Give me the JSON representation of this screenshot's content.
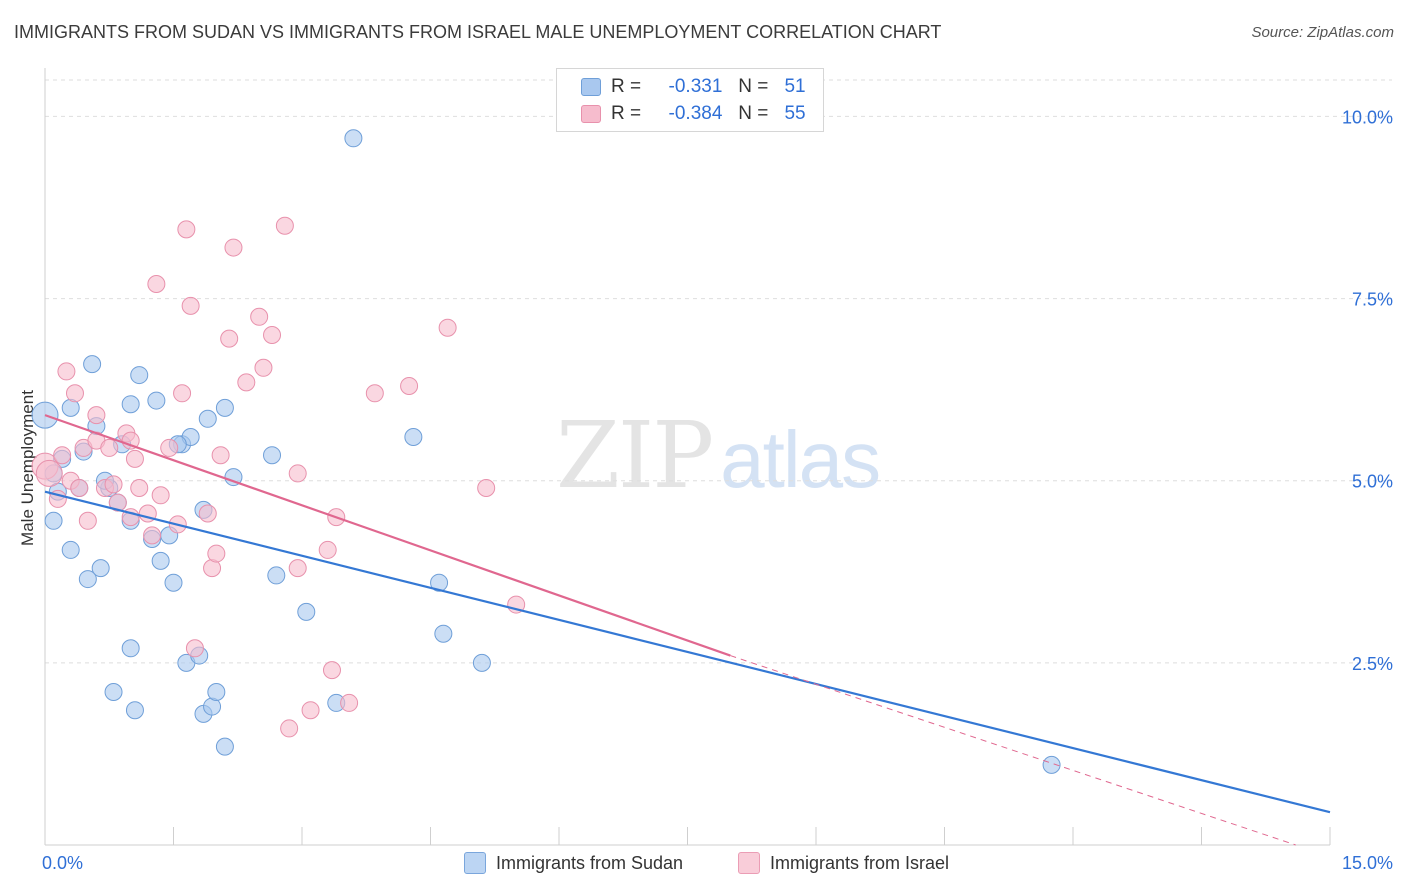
{
  "title": "IMMIGRANTS FROM SUDAN VS IMMIGRANTS FROM ISRAEL MALE UNEMPLOYMENT CORRELATION CHART",
  "source": "Source: ZipAtlas.com",
  "watermark": {
    "part1": "ZIP",
    "part2": "atlas"
  },
  "legend": {
    "sudan": {
      "r_label": "R =",
      "r_value": "-0.331",
      "n_label": "N =",
      "n_value": "51"
    },
    "israel": {
      "r_label": "R =",
      "r_value": "-0.384",
      "n_label": "N =",
      "n_value": "55"
    }
  },
  "bottom_legend": {
    "sudan": "Immigrants from Sudan",
    "israel": "Immigrants from Israel"
  },
  "colors": {
    "sudan_fill": "#a9c8ef",
    "sudan_stroke": "#6f9fd8",
    "sudan_line": "#3478d4",
    "israel_fill": "#f6bccd",
    "israel_stroke": "#e891ac",
    "israel_line": "#e0678f",
    "tick_text": "#2f6fd6",
    "grid": "#dedede"
  },
  "chart_data": {
    "type": "scatter",
    "title": "IMMIGRANTS FROM SUDAN VS IMMIGRANTS FROM ISRAEL MALE UNEMPLOYMENT CORRELATION CHART",
    "xlabel": "",
    "ylabel": "Male Unemployment",
    "xlim": [
      0,
      15
    ],
    "ylim": [
      0,
      10.5
    ],
    "x_tick_labels": [
      "0.0%",
      "15.0%"
    ],
    "y_ticks": [
      2.5,
      5.0,
      7.5,
      10.0
    ],
    "y_tick_labels": [
      "2.5%",
      "5.0%",
      "7.5%",
      "10.0%"
    ],
    "grid": true,
    "legend_position": "top-center",
    "series": [
      {
        "name": "Immigrants from Sudan",
        "points": [
          [
            0.0,
            5.9
          ],
          [
            0.1,
            4.45
          ],
          [
            0.1,
            5.1
          ],
          [
            0.2,
            5.3
          ],
          [
            0.3,
            4.05
          ],
          [
            0.3,
            6.0
          ],
          [
            0.4,
            4.9
          ],
          [
            0.45,
            5.4
          ],
          [
            0.5,
            3.65
          ],
          [
            0.55,
            6.6
          ],
          [
            0.6,
            5.75
          ],
          [
            0.65,
            3.8
          ],
          [
            0.75,
            4.9
          ],
          [
            0.8,
            2.1
          ],
          [
            0.85,
            4.7
          ],
          [
            0.9,
            5.5
          ],
          [
            1.0,
            4.45
          ],
          [
            1.0,
            6.05
          ],
          [
            1.0,
            2.7
          ],
          [
            1.05,
            1.85
          ],
          [
            1.1,
            6.45
          ],
          [
            1.25,
            4.2
          ],
          [
            1.3,
            6.1
          ],
          [
            1.35,
            3.9
          ],
          [
            1.45,
            4.25
          ],
          [
            1.5,
            3.6
          ],
          [
            1.6,
            5.5
          ],
          [
            1.65,
            2.5
          ],
          [
            1.7,
            5.6
          ],
          [
            1.8,
            2.6
          ],
          [
            1.85,
            1.8
          ],
          [
            1.85,
            4.6
          ],
          [
            1.9,
            5.85
          ],
          [
            1.95,
            1.9
          ],
          [
            2.0,
            2.1
          ],
          [
            2.1,
            1.35
          ],
          [
            2.1,
            6.0
          ],
          [
            2.2,
            5.05
          ],
          [
            2.65,
            5.35
          ],
          [
            2.7,
            3.7
          ],
          [
            3.05,
            3.2
          ],
          [
            3.4,
            1.95
          ],
          [
            3.6,
            9.7
          ],
          [
            4.3,
            5.6
          ],
          [
            4.6,
            3.6
          ],
          [
            4.65,
            2.9
          ],
          [
            5.1,
            2.5
          ],
          [
            11.75,
            1.1
          ],
          [
            0.15,
            4.85
          ],
          [
            0.7,
            5.0
          ],
          [
            1.55,
            5.5
          ]
        ]
      },
      {
        "name": "Immigrants from Israel",
        "points": [
          [
            0.0,
            5.2
          ],
          [
            0.05,
            5.1
          ],
          [
            0.15,
            4.75
          ],
          [
            0.2,
            5.35
          ],
          [
            0.25,
            6.5
          ],
          [
            0.3,
            5.0
          ],
          [
            0.35,
            6.2
          ],
          [
            0.4,
            4.9
          ],
          [
            0.45,
            5.45
          ],
          [
            0.5,
            4.45
          ],
          [
            0.6,
            5.55
          ],
          [
            0.6,
            5.9
          ],
          [
            0.7,
            4.9
          ],
          [
            0.75,
            5.45
          ],
          [
            0.8,
            4.95
          ],
          [
            0.85,
            4.7
          ],
          [
            0.95,
            5.65
          ],
          [
            1.0,
            5.55
          ],
          [
            1.0,
            4.5
          ],
          [
            1.05,
            5.3
          ],
          [
            1.1,
            4.9
          ],
          [
            1.2,
            4.55
          ],
          [
            1.25,
            4.25
          ],
          [
            1.3,
            7.7
          ],
          [
            1.35,
            4.8
          ],
          [
            1.45,
            5.45
          ],
          [
            1.55,
            4.4
          ],
          [
            1.6,
            6.2
          ],
          [
            1.65,
            8.45
          ],
          [
            1.7,
            7.4
          ],
          [
            1.75,
            2.7
          ],
          [
            1.9,
            4.55
          ],
          [
            1.95,
            3.8
          ],
          [
            2.0,
            4.0
          ],
          [
            2.05,
            5.35
          ],
          [
            2.15,
            6.95
          ],
          [
            2.2,
            8.2
          ],
          [
            2.35,
            6.35
          ],
          [
            2.5,
            7.25
          ],
          [
            2.55,
            6.55
          ],
          [
            2.65,
            7.0
          ],
          [
            2.8,
            8.5
          ],
          [
            2.95,
            5.1
          ],
          [
            2.95,
            3.8
          ],
          [
            2.85,
            1.6
          ],
          [
            3.1,
            1.85
          ],
          [
            3.3,
            4.05
          ],
          [
            3.35,
            2.4
          ],
          [
            3.4,
            4.5
          ],
          [
            3.55,
            1.95
          ],
          [
            3.85,
            6.2
          ],
          [
            4.25,
            6.3
          ],
          [
            4.7,
            7.1
          ],
          [
            5.15,
            4.9
          ],
          [
            5.5,
            3.3
          ]
        ]
      }
    ],
    "trend_lines": [
      {
        "series": "Immigrants from Sudan",
        "x": [
          0.0,
          15.0
        ],
        "y": [
          4.85,
          0.45
        ],
        "style": "solid"
      },
      {
        "series": "Immigrants from Israel",
        "x": [
          0.0,
          8.0
        ],
        "y": [
          5.9,
          2.6
        ],
        "style": "solid"
      },
      {
        "series": "Immigrants from Israel",
        "x": [
          8.0,
          14.6
        ],
        "y": [
          2.6,
          0.0
        ],
        "style": "dashed"
      }
    ]
  }
}
